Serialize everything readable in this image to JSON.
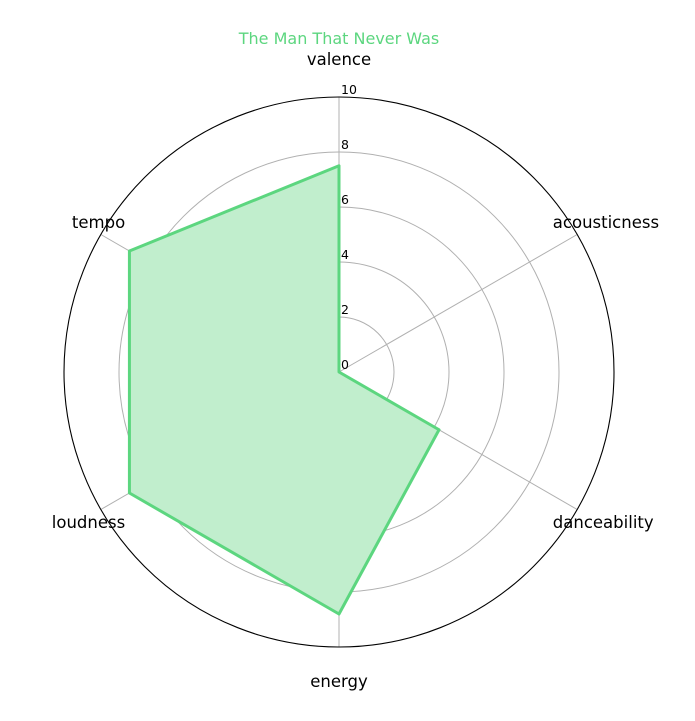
{
  "chart_data": {
    "type": "radar",
    "title": "The Man That Never Was",
    "axes": [
      "valence",
      "acousticness",
      "danceability",
      "energy",
      "loudness",
      "tempo"
    ],
    "series": [
      {
        "values": [
          7.5,
          0.0,
          4.2,
          8.8,
          8.8,
          8.8
        ]
      }
    ],
    "r_ticks": [
      "0",
      "2",
      "4",
      "6",
      "8",
      "10"
    ],
    "rlim": [
      0,
      10
    ],
    "grid": true,
    "legend": false,
    "colors": {
      "series": "#5cd67f",
      "fill": "#c1eecd",
      "grid": "#b0b0b0",
      "frame": "#000000",
      "title": "#5cd67f"
    }
  }
}
